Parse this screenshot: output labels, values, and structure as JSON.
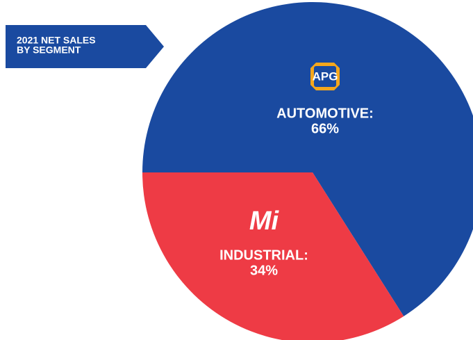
{
  "chart_data": {
    "type": "pie",
    "title": [
      "2021 NET SALES",
      "BY SEGMENT"
    ],
    "logos": [
      "APG",
      "Mi"
    ],
    "categories": [
      "AUTOMOTIVE:",
      "INDUSTRIAL:"
    ],
    "values": [
      66,
      34
    ],
    "value_labels": [
      "66%",
      "34%"
    ],
    "colors": [
      "#1a4aa0",
      "#ee3b45"
    ]
  }
}
